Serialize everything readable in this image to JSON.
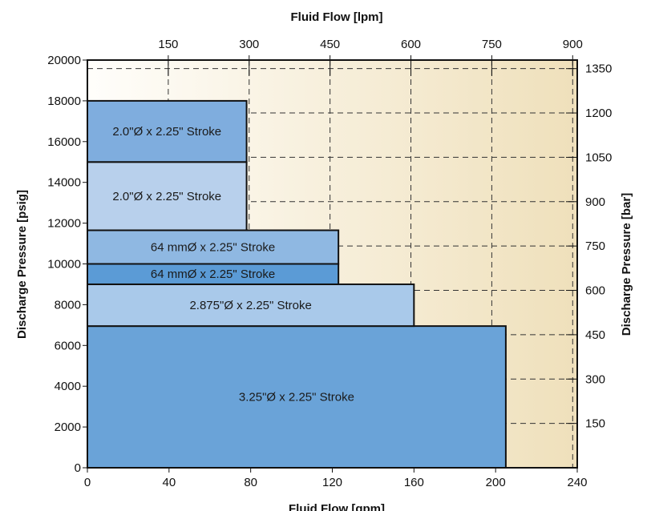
{
  "chart_data": {
    "type": "bar",
    "orientation": "horizontal-envelope",
    "title": "",
    "top_axis_label": "Fluid Flow [lpm]",
    "bottom_axis_label": "Fluid Flow [gpm]",
    "left_axis_label": "Discharge Pressure [psig]",
    "right_axis_label": "Discharge Pressure [bar]",
    "x_gpm_lim": [
      0,
      240
    ],
    "y_psig_lim": [
      0,
      20000
    ],
    "x_gpm_ticks": [
      "0",
      "40",
      "80",
      "120",
      "160",
      "200",
      "240"
    ],
    "x_lpm_ticks": [
      "150",
      "300",
      "450",
      "600",
      "750",
      "900"
    ],
    "y_psig_ticks": [
      "0",
      "2000",
      "4000",
      "6000",
      "8000",
      "10000",
      "12000",
      "14000",
      "16000",
      "18000",
      "20000"
    ],
    "y_bar_ticks": [
      "150",
      "300",
      "450",
      "600",
      "750",
      "900",
      "1050",
      "1200",
      "1350"
    ],
    "grid": true,
    "bars": [
      {
        "label": "3.25\"Ø x 2.25\" Stroke",
        "flow_gpm": 205,
        "pressure_min_psig": 0,
        "pressure_max_psig": 6950,
        "color": "#6aa3d8"
      },
      {
        "label": "2.875\"Ø x 2.25\" Stroke",
        "flow_gpm": 160,
        "pressure_min_psig": 6950,
        "pressure_max_psig": 9000,
        "color": "#a9c9ea"
      },
      {
        "label": "64 mmØ x 2.25\" Stroke",
        "flow_gpm": 123,
        "pressure_min_psig": 9000,
        "pressure_max_psig": 10000,
        "color": "#5b9bd6"
      },
      {
        "label": "64 mmØ x 2.25\" Stroke",
        "flow_gpm": 123,
        "pressure_min_psig": 10000,
        "pressure_max_psig": 11650,
        "color": "#8fb8e2"
      },
      {
        "label": "2.0\"Ø x 2.25\" Stroke",
        "flow_gpm": 78,
        "pressure_min_psig": 11650,
        "pressure_max_psig": 15000,
        "color": "#b8d0ec"
      },
      {
        "label": "2.0\"Ø x 2.25\" Stroke",
        "flow_gpm": 78,
        "pressure_min_psig": 15000,
        "pressure_max_psig": 18000,
        "color": "#7fadde"
      }
    ],
    "colors": {
      "background_left": "#fffefb",
      "background_right": "#efe0bb",
      "frame": "#111111"
    }
  }
}
